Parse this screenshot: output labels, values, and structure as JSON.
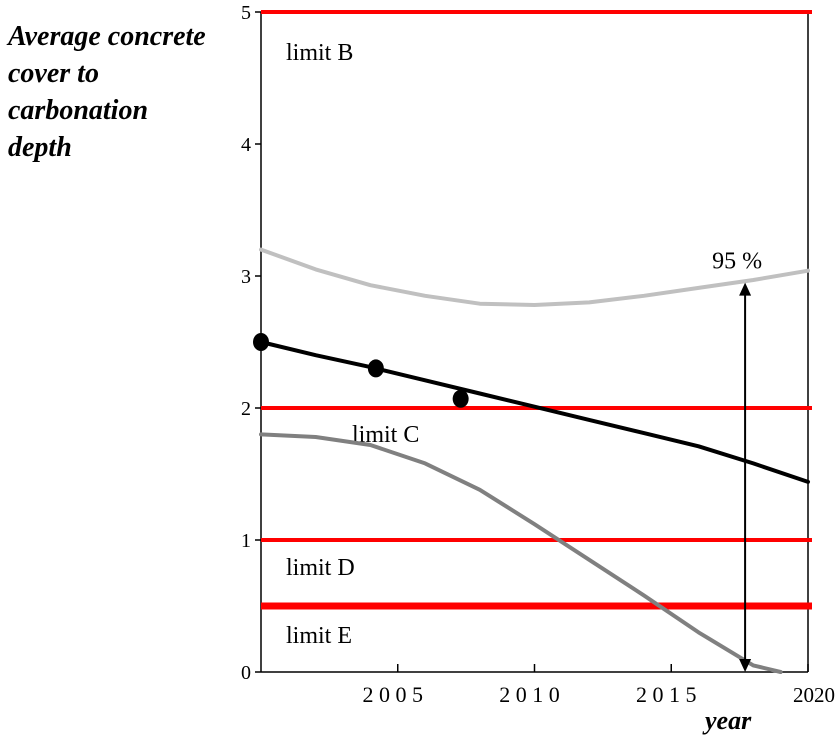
{
  "chart_data": {
    "type": "line",
    "ylabel_lines": [
      "Average concrete",
      "cover to",
      "carbonation",
      "depth"
    ],
    "xlabel": "year",
    "xlim": [
      2000,
      2020
    ],
    "ylim": [
      0,
      5
    ],
    "y_ticks": [
      "0",
      "1",
      "2",
      "3",
      "4",
      "5"
    ],
    "x_ticks": [
      {
        "value": 2005,
        "label": "2 0 0 5"
      },
      {
        "value": 2010,
        "label": "2 0 1 0"
      },
      {
        "value": 2015,
        "label": "2 0 1 5"
      },
      {
        "value": 2020,
        "label": "2020"
      }
    ],
    "grid": false,
    "limits": [
      {
        "name": "limit B",
        "y": 5.0
      },
      {
        "name": "limit C",
        "y": 2.0
      },
      {
        "name": "limit D",
        "y": 1.0
      },
      {
        "name": "limit E",
        "y": 0.5
      }
    ],
    "limit_color": "#ff0000",
    "series": [
      {
        "role": "upper",
        "color": "#c0c0c0",
        "x": [
          2000,
          2002,
          2004,
          2006,
          2008,
          2010,
          2012,
          2014,
          2016,
          2018,
          2020
        ],
        "y": [
          3.2,
          3.05,
          2.93,
          2.85,
          2.79,
          2.78,
          2.8,
          2.85,
          2.91,
          2.97,
          3.04
        ]
      },
      {
        "role": "mean",
        "color": "#000000",
        "x": [
          2000,
          2002,
          2004,
          2006,
          2008,
          2010,
          2012,
          2014,
          2016,
          2018,
          2020
        ],
        "y": [
          2.5,
          2.4,
          2.31,
          2.21,
          2.11,
          2.01,
          1.91,
          1.81,
          1.71,
          1.58,
          1.44
        ]
      },
      {
        "role": "lower",
        "color": "#808080",
        "x": [
          2000,
          2002,
          2004,
          2006,
          2008,
          2010,
          2012,
          2014,
          2016,
          2018,
          2019
        ],
        "y": [
          1.8,
          1.78,
          1.72,
          1.58,
          1.38,
          1.12,
          0.85,
          0.58,
          0.3,
          0.05,
          0
        ]
      }
    ],
    "measurements": {
      "x": [
        2000,
        2004.2,
        2007.3
      ],
      "y": [
        2.5,
        2.3,
        2.07
      ]
    },
    "annotation": {
      "label": "95 %",
      "x": 2017.7,
      "y_top": 2.95,
      "y_bottom": 0
    }
  }
}
